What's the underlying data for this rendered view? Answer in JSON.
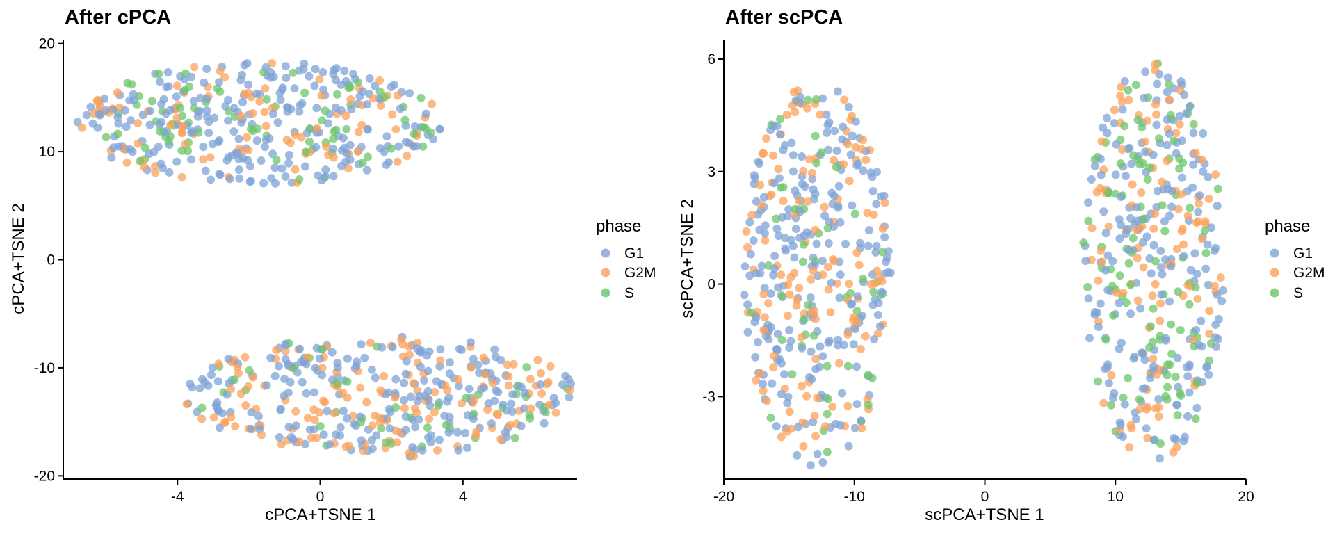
{
  "chart_data": [
    {
      "type": "scatter",
      "title": "After cPCA",
      "xlabel": "cPCA+TSNE 1",
      "ylabel": "cPCA+TSNE 2",
      "xlim": [
        -7.2,
        7.2
      ],
      "ylim": [
        -20.3,
        20.3
      ],
      "xticks": [
        -4,
        0,
        4
      ],
      "yticks": [
        -20,
        -10,
        0,
        10,
        20
      ],
      "grid": false,
      "legend": {
        "title": "phase",
        "position": "right",
        "entries": [
          "G1",
          "G2M",
          "S"
        ]
      },
      "colors": {
        "G1": "#7fa3d6",
        "G2M": "#fba15b",
        "S": "#6cc56a"
      },
      "clusters": [
        {
          "name": "upper",
          "x_range": [
            -6.8,
            3.4
          ],
          "y_range": [
            7.0,
            18.3
          ],
          "share": {
            "G1": 0.58,
            "G2M": 0.22,
            "S": 0.2
          }
        },
        {
          "name": "lower",
          "x_range": [
            -3.8,
            7.2
          ],
          "y_range": [
            -18.3,
            -7.0
          ],
          "share": {
            "G1": 0.54,
            "G2M": 0.34,
            "S": 0.12
          }
        }
      ]
    },
    {
      "type": "scatter",
      "title": "After scPCA",
      "xlabel": "scPCA+TSNE 1",
      "ylabel": "scPCA+TSNE 2",
      "xlim": [
        -20,
        20
      ],
      "ylim": [
        -5.2,
        6.5
      ],
      "xticks": [
        -20,
        -10,
        0,
        10,
        20
      ],
      "yticks": [
        -3,
        0,
        3,
        6
      ],
      "grid": false,
      "legend": {
        "title": "phase",
        "position": "right",
        "entries": [
          "G1",
          "G2M",
          "S"
        ]
      },
      "colors": {
        "G1": "#7fa3d6",
        "G2M": "#fba15b",
        "S": "#6cc56a"
      },
      "clusters": [
        {
          "name": "left",
          "x_range": [
            -18.5,
            -7.2
          ],
          "y_range": [
            -4.9,
            5.4
          ],
          "share": {
            "G1": 0.55,
            "G2M": 0.33,
            "S": 0.12
          }
        },
        {
          "name": "right",
          "x_range": [
            7.5,
            18.3
          ],
          "y_range": [
            -4.8,
            5.9
          ],
          "share": {
            "G1": 0.52,
            "G2M": 0.26,
            "S": 0.22
          }
        }
      ]
    }
  ]
}
